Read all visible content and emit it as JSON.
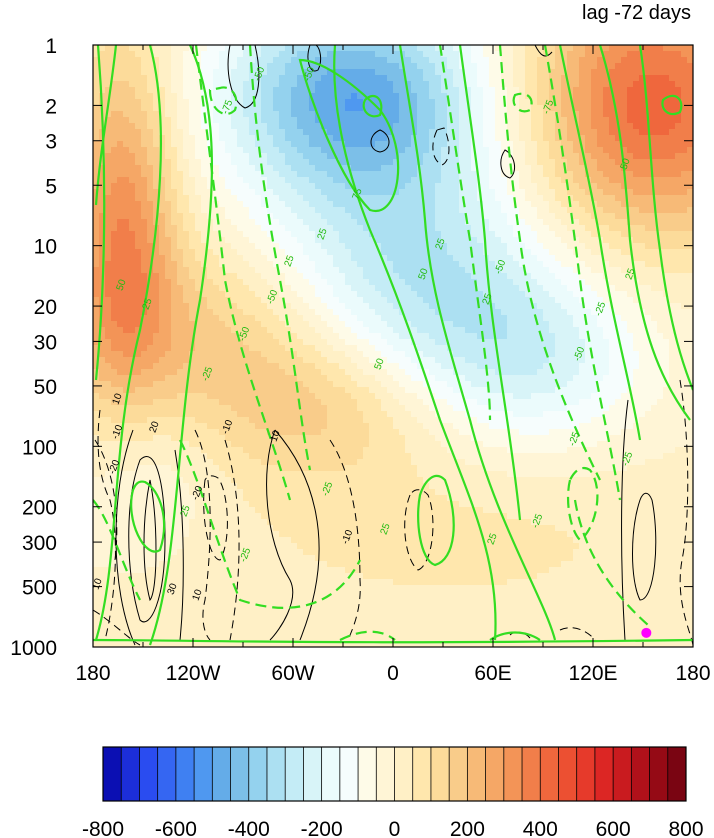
{
  "chart_data": {
    "type": "heatmap",
    "title": "lag -72 days",
    "x_ticks": [
      "180",
      "120W",
      "60W",
      "0",
      "60E",
      "120E",
      "180"
    ],
    "x_tick_values": [
      -180,
      -120,
      -60,
      0,
      60,
      120,
      180
    ],
    "y_ticks": [
      "1",
      "2",
      "3",
      "5",
      "10",
      "20",
      "30",
      "50",
      "100",
      "200",
      "300",
      "500",
      "1000"
    ],
    "y_tick_values": [
      1,
      2,
      3,
      5,
      10,
      20,
      30,
      50,
      100,
      200,
      300,
      500,
      1000
    ],
    "y_scale": "log",
    "y_reversed": true,
    "xlim": [
      -180,
      180
    ],
    "ylim": [
      1000,
      1
    ],
    "colorbar": {
      "levels": [
        -800,
        -750,
        -700,
        -650,
        -600,
        -550,
        -500,
        -450,
        -400,
        -350,
        -300,
        -250,
        -200,
        -150,
        -100,
        -50,
        0,
        50,
        100,
        150,
        200,
        250,
        300,
        350,
        400,
        450,
        500,
        550,
        600,
        650,
        700,
        750,
        800
      ],
      "labels": [
        "-800",
        "-600",
        "-400",
        "-200",
        "0",
        "200",
        "400",
        "600",
        "800"
      ],
      "label_values": [
        -800,
        -600,
        -400,
        -200,
        0,
        200,
        400,
        600,
        800
      ],
      "colors": [
        "#0b0fb3",
        "#1c2ed9",
        "#2a4cf0",
        "#3566f2",
        "#3f80f2",
        "#4f98f0",
        "#64ace8",
        "#7cbfe8",
        "#94d2ee",
        "#ace0f2",
        "#c4ecf6",
        "#d8f4f8",
        "#ebfbfc",
        "#f6fdfd",
        "#fefbe8",
        "#fff5d6",
        "#fff0c6",
        "#ffe7ad",
        "#fcdb9a",
        "#f9cc8a",
        "#f7ba77",
        "#f5a766",
        "#f39457",
        "#f17e4a",
        "#ef673d",
        "#ec5032",
        "#e63a2b",
        "#dc2624",
        "#c91b1f",
        "#b0111a",
        "#950a15",
        "#7a0512"
      ]
    },
    "contour_label_values": [
      "-75",
      "-50",
      "-25",
      "25",
      "50",
      "75",
      "-30",
      "-20",
      "-10",
      "10",
      "20",
      "30"
    ],
    "marker": {
      "lon": 152,
      "pressure": 850,
      "color": "#ff00ff"
    },
    "grid": false,
    "legend_position": "bottom"
  }
}
